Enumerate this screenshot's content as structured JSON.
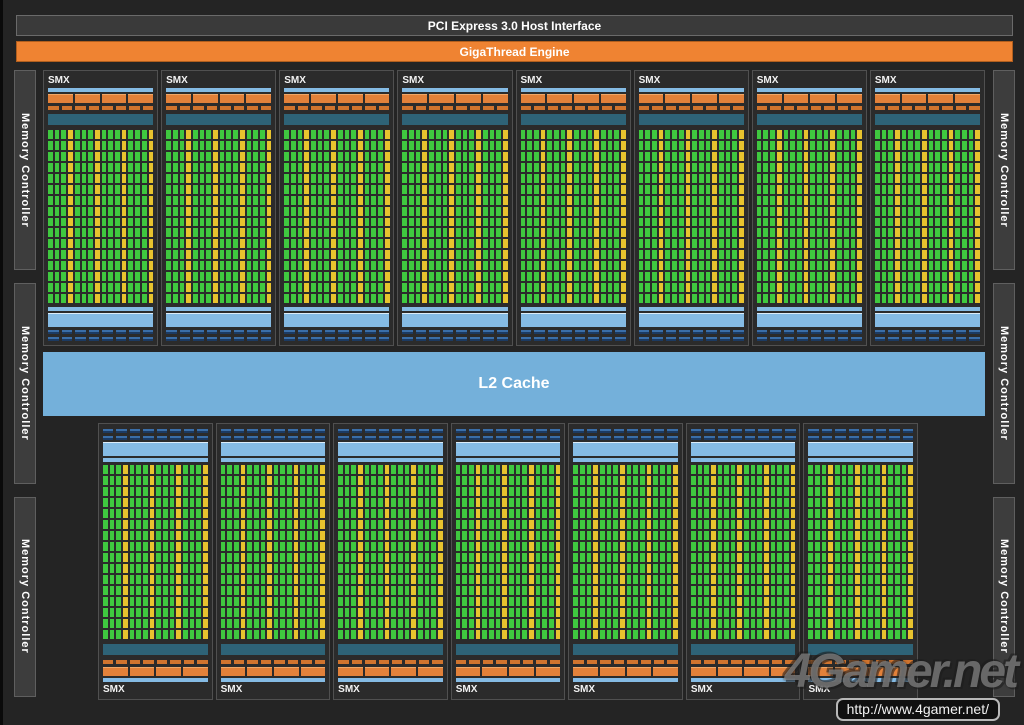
{
  "header": {
    "pci_label": "PCI Express 3.0 Host Interface",
    "gigathread_label": "GigaThread Engine"
  },
  "memory_controllers": {
    "label": "Memory Controller",
    "left_count": 3,
    "right_count": 3
  },
  "smx": {
    "label": "SMX",
    "top_count": 8,
    "bottom_count": 7,
    "grid": {
      "columns": 16,
      "rows": 16,
      "dp_column_every": 4
    },
    "exec_block_count": 4,
    "exec_dash_count": 8,
    "result_dash_rows": 2,
    "result_dashes_per_row": 8
  },
  "l2_cache": {
    "label": "L2 Cache"
  },
  "watermark": {
    "logo": "4Gamer.net",
    "url": "http://www.4gamer.net/"
  },
  "colors": {
    "bg": "#242424",
    "panel": "#2b2b2b",
    "panel_border": "#505050",
    "bar_gray": "#3a3a3a",
    "orange": "#ef8332",
    "orange_block": "#e2813a",
    "light_blue": "#85bbe4",
    "l2_blue": "#74b0da",
    "teal": "#2e6377",
    "core_green": "#3fc83f",
    "dp_yellow": "#e8c32e",
    "navy_top": "#3a6ea8",
    "navy_bottom": "#1c3a61"
  }
}
